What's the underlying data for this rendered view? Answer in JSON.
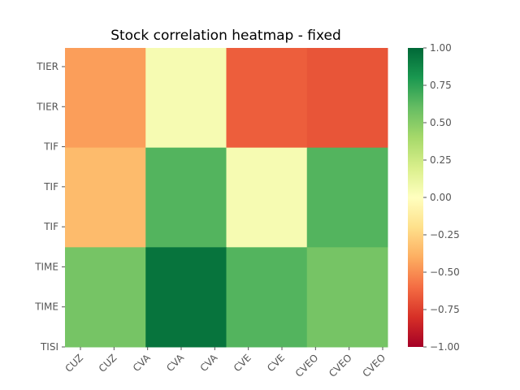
{
  "chart_data": {
    "type": "heatmap",
    "title": "Stock correlation heatmap - fixed",
    "xlabel": "",
    "ylabel": "",
    "x_tick_labels": [
      "CUZ",
      "CUZ",
      "CVA",
      "CVA",
      "CVA",
      "CVE",
      "CVE",
      "CVEO",
      "CVEO",
      "CVEO"
    ],
    "y_tick_labels": [
      "TIER",
      "TIER",
      "TIF",
      "TIF",
      "TIF",
      "TIME",
      "TIME",
      "TISI"
    ],
    "column_blocks": [
      {
        "label": "CUZ",
        "x_range": [
          0,
          1
        ]
      },
      {
        "label": "CVA",
        "x_range": [
          1,
          2
        ]
      },
      {
        "label": "CVE",
        "x_range": [
          2,
          3
        ]
      },
      {
        "label": "CVEO",
        "x_range": [
          3,
          4
        ]
      }
    ],
    "row_blocks": [
      {
        "label": "TIER",
        "y_range": [
          0,
          1.2
        ]
      },
      {
        "label": "TIF",
        "y_range": [
          1.2,
          2.4
        ]
      },
      {
        "label": "TIME",
        "y_range": [
          2.4,
          3.6
        ]
      }
    ],
    "values": [
      [
        -0.45,
        0.05,
        -0.65,
        -0.68
      ],
      [
        -0.35,
        0.65,
        0.05,
        0.65
      ],
      [
        0.55,
        0.95,
        0.65,
        0.55
      ]
    ],
    "colormap": "RdYlGn",
    "colorbar": {
      "range": [
        -1.0,
        1.0
      ],
      "ticks": [
        "1.00",
        "0.75",
        "0.50",
        "0.25",
        "0.00",
        "−0.25",
        "−0.50",
        "−0.75",
        "−1.00"
      ]
    },
    "grid": false,
    "legend": "colorbar-right"
  }
}
